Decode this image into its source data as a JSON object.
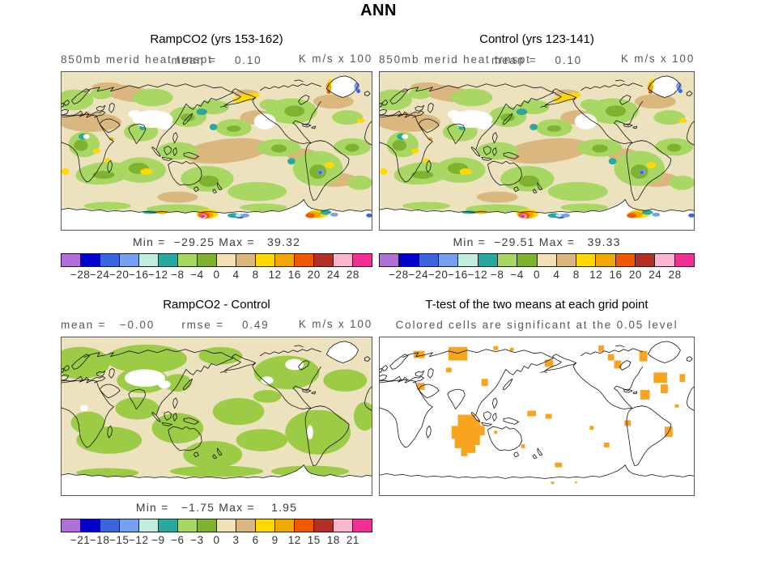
{
  "figure": {
    "title": "ANN"
  },
  "colorbar_colors": [
    "#B070D8",
    "#0000C8",
    "#3C64DC",
    "#78A0F0",
    "#C4ECDE",
    "#29A89F",
    "#A8D763",
    "#7FB231",
    "#EFE1B8",
    "#D9B77E",
    "#FFD800",
    "#F0A800",
    "#F05800",
    "#B03028",
    "#F8B8D0",
    "#F03090"
  ],
  "map_style": {
    "field_bg": "#EDE2BE",
    "tan_dark": "#D9B77E",
    "green_light": "#A8D763",
    "green_dark": "#7FB231",
    "diff_green": "#9CCB45",
    "teal": "#29A89F",
    "yellow": "#FFD800",
    "orange": "#F0A800",
    "red": "#F05800",
    "dark_red": "#B03028",
    "pink": "#F8B8D0",
    "magenta": "#F03090",
    "blue_dark": "#0000C8",
    "blue_med": "#3C64DC",
    "blue_light": "#78A0F0",
    "cyan_pale": "#C4ECDE",
    "white": "#FFFFFF",
    "coast": "#111111",
    "frame": "#555555",
    "ttest_orange": "#F7A41E",
    "ttest_bg": "#FFFFFF"
  },
  "chart_data": [
    {
      "type": "heatmap",
      "panel": "top-left",
      "title": "RampCO2 (yrs 153-162)",
      "variable": "850mb merid heat trnspt",
      "units": "K m/s x 100",
      "mean": 0.1,
      "min": -29.25,
      "max": 39.32,
      "annotations": {
        "variable_label": "850mb merid heat trnspt",
        "mean_label": "mean =    0.10",
        "units_label": "K m/s x 100",
        "minmax_label": "Min =  −29.25 Max =   39.32"
      },
      "colorbar": {
        "levels": [
          -28,
          -24,
          -20,
          -16,
          -12,
          -8,
          -4,
          0,
          4,
          8,
          12,
          16,
          20,
          24,
          28
        ],
        "tick_labels": [
          "−28",
          "−24",
          "−20",
          "−16",
          "−12",
          "−8",
          "−4",
          "0",
          "4",
          "8",
          "12",
          "16",
          "20",
          "24",
          "28"
        ]
      }
    },
    {
      "type": "heatmap",
      "panel": "top-right",
      "title": "Control (yrs 123-141)",
      "variable": "850mb merid heat trnspt",
      "units": "K m/s x 100",
      "mean": 0.1,
      "min": -29.51,
      "max": 39.33,
      "annotations": {
        "variable_label": "850mb merid heat trnspt",
        "mean_label": "mean =    0.10",
        "units_label": "K m/s x 100",
        "minmax_label": "Min =  −29.51 Max =   39.33"
      },
      "colorbar": {
        "levels": [
          -28,
          -24,
          -20,
          -16,
          -12,
          -8,
          -4,
          0,
          4,
          8,
          12,
          16,
          20,
          24,
          28
        ],
        "tick_labels": [
          "−28",
          "−24",
          "−20",
          "−16",
          "−12",
          "−8",
          "−4",
          "0",
          "4",
          "8",
          "12",
          "16",
          "20",
          "24",
          "28"
        ]
      }
    },
    {
      "type": "heatmap",
      "panel": "bottom-left",
      "title": "RampCO2 - Control",
      "units": "K m/s x 100",
      "mean": -0.0,
      "rmse": 0.49,
      "min": -1.75,
      "max": 1.95,
      "annotations": {
        "stats_label": "mean =   −0.00      rmse =    0.49",
        "units_label": "K m/s x 100",
        "minmax_label": "Min =   −1.75 Max =    1.95"
      },
      "colorbar": {
        "levels": [
          -21,
          -18,
          -15,
          -12,
          -9,
          -6,
          -3,
          0,
          3,
          6,
          9,
          12,
          15,
          18,
          21
        ],
        "tick_labels": [
          "−21",
          "−18",
          "−15",
          "−12",
          "−9",
          "−6",
          "−3",
          "0",
          "3",
          "6",
          "9",
          "12",
          "15",
          "18",
          "21"
        ]
      }
    },
    {
      "type": "heatmap",
      "panel": "bottom-right",
      "title": "T-test of the two means at each grid point",
      "significance_level": 0.05,
      "annotations": {
        "subtitle": "Colored cells are significant at the 0.05 level"
      },
      "significant_color": "#F7A41E"
    }
  ]
}
